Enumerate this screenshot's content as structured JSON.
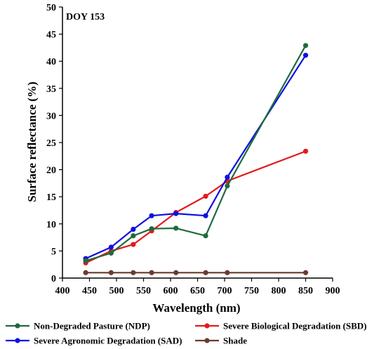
{
  "chart_data": {
    "type": "line",
    "title": "",
    "annotation": "DOY 153",
    "xlabel": "Wavelength (nm)",
    "ylabel": "Surface reflectance (%)",
    "xlim": [
      400,
      900
    ],
    "ylim": [
      0,
      50
    ],
    "xticks": [
      400,
      450,
      500,
      550,
      600,
      650,
      700,
      750,
      800,
      850,
      900
    ],
    "yticks": [
      0,
      5,
      10,
      15,
      20,
      25,
      30,
      35,
      40,
      45,
      50
    ],
    "grid": false,
    "legend_position": "bottom",
    "x": [
      443,
      490,
      531,
      565,
      610,
      665,
      705,
      850
    ],
    "series": [
      {
        "name": "Non-Degraded Pasture (NDP)",
        "color": "#1e6b3c",
        "values": [
          3.2,
          4.6,
          7.8,
          9.1,
          9.2,
          7.8,
          17.0,
          42.9
        ]
      },
      {
        "name": "Severe Biological Degradation (SBD)",
        "color": "#e31a1c",
        "values": [
          2.8,
          5.0,
          6.2,
          8.7,
          12.1,
          15.1,
          17.9,
          23.4
        ]
      },
      {
        "name": "Severe Agronomic Degradation (SAD)",
        "color": "#1010e0",
        "values": [
          3.6,
          5.7,
          9.0,
          11.5,
          11.9,
          11.5,
          18.6,
          41.1
        ]
      },
      {
        "name": "Shade",
        "color": "#6b3a2e",
        "values": [
          1.0,
          1.0,
          1.0,
          1.0,
          1.0,
          1.0,
          1.0,
          1.0
        ]
      }
    ]
  }
}
